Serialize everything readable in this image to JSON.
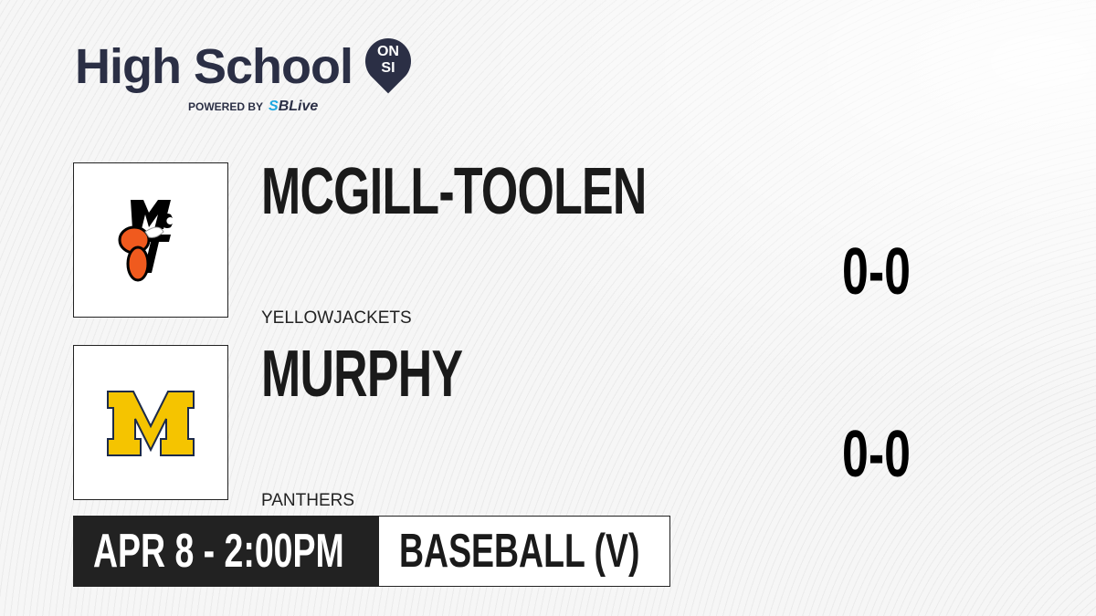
{
  "brand": {
    "title": "High School",
    "badge_top": "ON",
    "badge_bottom": "SI",
    "powered_by": "POWERED BY",
    "partner_prefix": "S",
    "partner": "SBLive"
  },
  "teams": [
    {
      "name": "MCGILL-TOOLEN",
      "mascot": "YELLOWJACKETS",
      "record": "0-0",
      "logo_text": "McT",
      "logo_colors": {
        "primary": "#f05a1e",
        "secondary": "#000000"
      }
    },
    {
      "name": "MURPHY",
      "mascot": "PANTHERS",
      "record": "0-0",
      "logo_text": "M",
      "logo_colors": {
        "primary": "#f5c400",
        "secondary": "#1c2a4a"
      }
    }
  ],
  "game": {
    "datetime": "APR 8 - 2:00PM",
    "sport": "BASEBALL (V)"
  }
}
